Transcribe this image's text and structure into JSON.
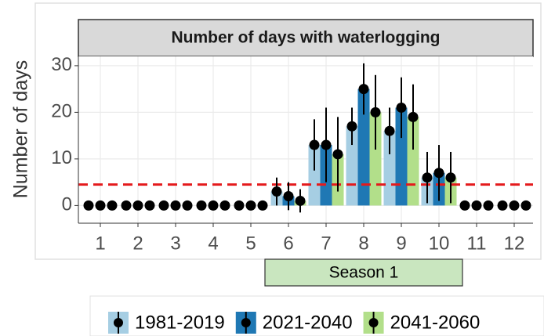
{
  "chart_data": {
    "type": "bar",
    "title": "Number of days with waterlogging",
    "y_label": "Number of days",
    "categories": [
      "1",
      "2",
      "3",
      "4",
      "5",
      "6",
      "7",
      "8",
      "9",
      "10",
      "11",
      "12"
    ],
    "series": [
      {
        "name": "1981-2019",
        "color": "#a6cee3",
        "values": [
          0,
          0,
          0,
          0,
          0,
          3,
          13,
          17,
          16,
          6,
          0,
          0
        ],
        "errors": [
          null,
          null,
          null,
          null,
          null,
          3,
          5.5,
          4,
          5,
          5.5,
          null,
          null
        ]
      },
      {
        "name": "2021-2040",
        "color": "#1f78b4",
        "values": [
          0,
          0,
          0,
          0,
          0,
          2,
          13,
          25,
          21,
          7,
          0,
          0
        ],
        "errors": [
          null,
          null,
          null,
          null,
          null,
          3,
          8,
          5.5,
          6.5,
          6,
          null,
          null
        ]
      },
      {
        "name": "2041-2060",
        "color": "#b2df8a",
        "values": [
          0,
          0,
          0,
          0,
          0,
          1,
          11,
          20,
          19,
          6,
          0,
          0
        ],
        "errors": [
          null,
          null,
          null,
          null,
          null,
          2.5,
          8,
          8,
          7,
          5.5,
          null,
          null
        ]
      }
    ],
    "ylim": [
      -3.8,
      32
    ],
    "yticks": [
      0,
      10,
      20,
      30
    ],
    "grid": true,
    "reference_line": {
      "value": 4.5,
      "color": "#e41a1c"
    },
    "annotation": {
      "text": "Season 1",
      "span": [
        "6",
        "10"
      ]
    },
    "legend": "bottom"
  }
}
